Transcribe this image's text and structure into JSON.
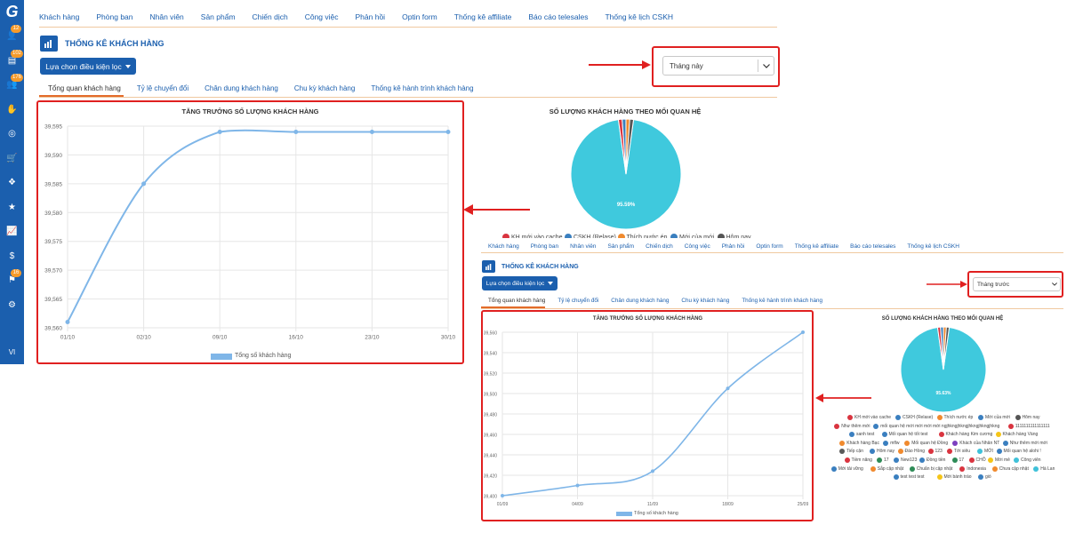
{
  "sidebar": {
    "logo": "G",
    "items": [
      {
        "icon": "user-icon",
        "badge": "12"
      },
      {
        "icon": "inbox-icon",
        "badge": "102"
      },
      {
        "icon": "team-icon",
        "badge": "176"
      },
      {
        "icon": "handshake-icon",
        "badge": ""
      },
      {
        "icon": "target-icon",
        "badge": ""
      },
      {
        "icon": "cart-icon",
        "badge": ""
      },
      {
        "icon": "boxes-icon",
        "badge": ""
      },
      {
        "icon": "star-icon",
        "badge": ""
      },
      {
        "icon": "chart-line-icon",
        "badge": ""
      },
      {
        "icon": "dollar-icon",
        "badge": ""
      },
      {
        "icon": "org-icon",
        "badge": "16"
      },
      {
        "icon": "gear-icon",
        "badge": ""
      }
    ],
    "language": "VI"
  },
  "top_tabs": [
    "Khách hàng",
    "Phòng ban",
    "Nhân viên",
    "Sản phẩm",
    "Chiến dịch",
    "Công việc",
    "Phản hồi",
    "Optin form",
    "Thống kê affiliate",
    "Báo cáo telesales",
    "Thống kê lịch CSKH"
  ],
  "page_title": "THỐNG KÊ KHÁCH HÀNG",
  "filter_button": "Lựa chọn điều kiện lọc",
  "sub_tabs": [
    "Tổng quan khách hàng",
    "Tỷ lệ chuyển đổi",
    "Chân dung khách hàng",
    "Chu kỳ khách hàng",
    "Thống kê hành trình khách hàng"
  ],
  "panel1": {
    "period": "Tháng này",
    "line_chart_title": "TĂNG TRƯỞNG SỐ LƯỢNG KHÁCH HÀNG",
    "pie_chart_title": "SỐ LƯỢNG KHÁCH HÀNG THEO MỐI QUAN HỆ",
    "pie_label": "95.59%",
    "legend": "Tổng số khách hàng",
    "pie_legend": [
      {
        "label": "KH mới vào cache",
        "color": "#d9343f"
      },
      {
        "label": "CSKH (Relase)",
        "color": "#3a7fbf"
      },
      {
        "label": "Thích nước ép",
        "color": "#f08a2e"
      },
      {
        "label": "Mới của mới",
        "color": "#3a7fbf"
      },
      {
        "label": "Hôm nay",
        "color": "#555555"
      }
    ]
  },
  "panel2": {
    "period": "Tháng trước",
    "line_chart_title": "TĂNG TRƯỞNG SỐ LƯỢNG KHÁCH HÀNG",
    "pie_chart_title": "SỐ LƯỢNG KHÁCH HÀNG THEO MỐI QUAN HỆ",
    "pie_label": "95.63%",
    "legend": "Tổng số khách hàng",
    "pie_legend": [
      {
        "label": "KH mới vào cache",
        "color": "#d9343f"
      },
      {
        "label": "CSKH (Relase)",
        "color": "#3a7fbf"
      },
      {
        "label": "Thích nước ép",
        "color": "#f08a2e"
      },
      {
        "label": "Mới của mới",
        "color": "#3a7fbf"
      },
      {
        "label": "Hôm nay",
        "color": "#555555"
      },
      {
        "label": "Như thêm mới",
        "color": "#d9343f"
      },
      {
        "label": "mối quan hệ mới mới mới mới ngjhkngjhkngjhkngjhkngjhkng",
        "color": "#3a7fbf"
      },
      {
        "label": "1111111111111111",
        "color": "#d9343f"
      },
      {
        "label": "sanh test",
        "color": "#3a7fbf"
      },
      {
        "label": "Mối quan hệ tốt test",
        "color": "#3a7fbf"
      },
      {
        "label": "Khách hàng Kim cương",
        "color": "#d9343f"
      },
      {
        "label": "Khách hàng Vàng",
        "color": "#f5c518"
      },
      {
        "label": "Khách hàng Bạc",
        "color": "#f08a2e"
      },
      {
        "label": "mflw",
        "color": "#3a7fbf"
      },
      {
        "label": "Mối quan hệ Đồng",
        "color": "#f08a2e"
      },
      {
        "label": "Khách của Nhân NT",
        "color": "#7c3fbf"
      },
      {
        "label": "Như thêm mới mới",
        "color": "#3a7fbf"
      },
      {
        "label": "Tiếp cận",
        "color": "#5a5a5a"
      },
      {
        "label": "Hôm nay",
        "color": "#3a7fbf"
      },
      {
        "label": "Đào Hồng",
        "color": "#f08a2e"
      },
      {
        "label": "123",
        "color": "#d9343f"
      },
      {
        "label": "Tới siêu",
        "color": "#d9343f"
      },
      {
        "label": "MỚI",
        "color": "#3fc1d9"
      },
      {
        "label": "Mối quan hệ alohi !",
        "color": "#3a7fbf"
      },
      {
        "label": "Tiềm năng",
        "color": "#d9343f"
      },
      {
        "label": "17",
        "color": "#2e8b57"
      },
      {
        "label": "New123",
        "color": "#3a7fbf"
      },
      {
        "label": "Đồng tiền",
        "color": "#3a7fbf"
      },
      {
        "label": "17",
        "color": "#2e8b57"
      },
      {
        "label": "CHỖ",
        "color": "#d9343f"
      },
      {
        "label": "Mới mẻ",
        "color": "#f5c518"
      },
      {
        "label": "Công viên",
        "color": "#3fc1d9"
      },
      {
        "label": "Mới tải vững",
        "color": "#3a7fbf"
      },
      {
        "label": "Sắp cập nhật",
        "color": "#f08a2e"
      },
      {
        "label": "Chuẩn bị cập nhật",
        "color": "#2e8b57"
      },
      {
        "label": "Indonesia",
        "color": "#d9343f"
      },
      {
        "label": "Chưa cập nhật",
        "color": "#f08a2e"
      },
      {
        "label": "Hà Lan",
        "color": "#3fc1d9"
      },
      {
        "label": "test test test",
        "color": "#3a7fbf"
      },
      {
        "label": "Mới bánh tráo",
        "color": "#f5c518"
      },
      {
        "label": "gió",
        "color": "#3a7fbf"
      }
    ]
  },
  "chart_data": [
    {
      "type": "line",
      "title": "TĂNG TRƯỞNG SỐ LƯỢNG KHÁCH HÀNG",
      "x": [
        "01/10",
        "02/10",
        "09/10",
        "16/10",
        "23/10",
        "30/10"
      ],
      "series": [
        {
          "name": "Tổng số khách hàng",
          "values": [
            39561,
            39585,
            39594,
            39594,
            39594,
            39594
          ]
        }
      ],
      "ylim": [
        39560,
        39595
      ],
      "yticks": [
        "39,560",
        "39,565",
        "39,570",
        "39,575",
        "39,580",
        "39,585",
        "39,590",
        "39,595"
      ],
      "grid": true,
      "legend": "bottom"
    },
    {
      "type": "pie",
      "title": "SỐ LƯỢNG KHÁCH HÀNG THEO MỐI QUAN HỆ",
      "label": "95.59%",
      "values": [
        95.59,
        1.1,
        1.1,
        1.1,
        1.11
      ],
      "colors": [
        "#3fc9dd",
        "#d9343f",
        "#3a7fbf",
        "#f08a2e",
        "#555555"
      ]
    },
    {
      "type": "line",
      "title": "TĂNG TRƯỞNG SỐ LƯỢNG KHÁCH HÀNG",
      "x": [
        "01/09",
        "04/09",
        "11/09",
        "18/09",
        "25/09"
      ],
      "series": [
        {
          "name": "Tổng số khách hàng",
          "values": [
            39400,
            39410,
            39424,
            39505,
            39560
          ]
        }
      ],
      "ylim": [
        39400,
        39560
      ],
      "yticks": [
        "39,400",
        "39,420",
        "39,440",
        "39,460",
        "39,480",
        "39,500",
        "39,520",
        "39,540",
        "39,560"
      ],
      "grid": true,
      "legend": "bottom"
    },
    {
      "type": "pie",
      "title": "SỐ LƯỢNG KHÁCH HÀNG THEO MỐI QUAN HỆ",
      "label": "95.63%",
      "values": [
        95.63,
        1.1,
        1.1,
        1.1,
        1.07
      ],
      "colors": [
        "#3fc9dd",
        "#d9343f",
        "#3a7fbf",
        "#f08a2e",
        "#555555"
      ]
    }
  ]
}
